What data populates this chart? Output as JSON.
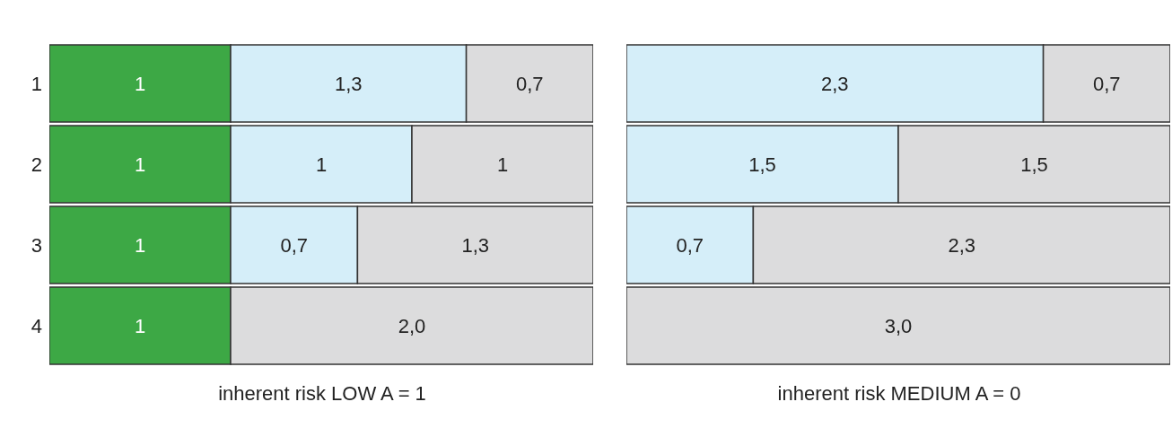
{
  "chart_data": [
    {
      "type": "bar",
      "orientation": "horizontal",
      "stacked": true,
      "categories": [
        "1",
        "2",
        "3",
        "4"
      ],
      "xlim": [
        0,
        3
      ],
      "xlabel": "inherent risk LOW A = 1",
      "tick_labels": "y",
      "series": [
        {
          "color": "#3da845",
          "values": [
            1,
            1,
            1,
            1
          ],
          "value_labels": [
            "1",
            "1",
            "1",
            "1"
          ]
        },
        {
          "color": "#d5eef9",
          "values": [
            1.3,
            1,
            0.7,
            null
          ],
          "value_labels": [
            "1,3",
            "1",
            "0,7",
            null
          ]
        },
        {
          "color": "#dcdcdd",
          "values": [
            0.7,
            1,
            1.3,
            2.0
          ],
          "value_labels": [
            "0,7",
            "1",
            "1,3",
            "2,0"
          ]
        }
      ]
    },
    {
      "type": "bar",
      "orientation": "horizontal",
      "stacked": true,
      "categories": [
        "1",
        "2",
        "3",
        "4"
      ],
      "xlim": [
        0,
        3
      ],
      "xlabel": "inherent risk MEDIUM A = 0",
      "tick_labels": false,
      "series": [
        {
          "color": "#d5eef9",
          "values": [
            2.3,
            1.5,
            0.7,
            null
          ],
          "value_labels": [
            "2,3",
            "1,5",
            "0,7",
            null
          ]
        },
        {
          "color": "#dcdcdd",
          "values": [
            0.7,
            1.5,
            2.3,
            3.0
          ],
          "value_labels": [
            "0,7",
            "1,5",
            "2,3",
            "3,0"
          ]
        }
      ]
    }
  ]
}
